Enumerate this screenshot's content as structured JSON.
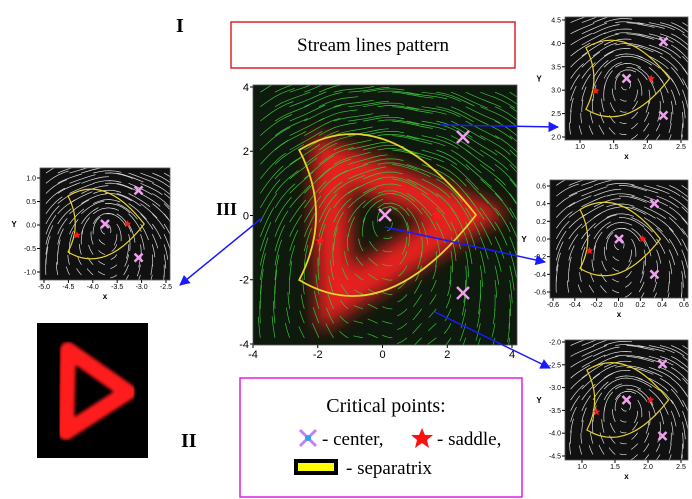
{
  "panel_labels": {
    "first": "I",
    "second": "II",
    "third": "III"
  },
  "title": "Stream lines pattern",
  "main_plot": {
    "xticks": [
      "-4",
      "-2",
      "0",
      "2",
      "4"
    ],
    "yticks": [
      "4",
      "2",
      "0",
      "-2",
      "-4"
    ]
  },
  "left_plot": {
    "xticks": [
      "-5.0",
      "-4.5",
      "-4.0",
      "-3.5",
      "-3.0",
      "-2.5"
    ],
    "yticks": [
      "1.0",
      "0.5",
      "0.0",
      "-0.5",
      "-1.0"
    ],
    "xlabel": "x",
    "ylabel": "Y"
  },
  "right_top_plot": {
    "xticks": [
      "1.0",
      "1.5",
      "2.0",
      "2.5"
    ],
    "yticks": [
      "4.5",
      "4.0",
      "3.5",
      "3.0",
      "2.5",
      "2.0"
    ],
    "xlabel": "x",
    "ylabel": "Y"
  },
  "right_middle_plot": {
    "xticks": [
      "-0.6",
      "-0.4",
      "-0.2",
      "0.0",
      "0.2",
      "0.4",
      "0.6"
    ],
    "yticks": [
      "0.6",
      "0.4",
      "0.2",
      "0.0",
      "-0.2",
      "-0.4",
      "-0.6"
    ],
    "xlabel": "x",
    "ylabel": "Y"
  },
  "right_bottom_plot": {
    "xticks": [
      "1.0",
      "1.5",
      "2.0",
      "2.5"
    ],
    "yticks": [
      "-2.0",
      "-2.5",
      "-3.0",
      "-3.5",
      "-4.0",
      "-4.5"
    ],
    "xlabel": "x",
    "ylabel": "Y"
  },
  "legend": {
    "heading": "Critical points:",
    "center": "- center,",
    "saddle": "- saddle,",
    "separatrix": "- separatrix"
  }
}
